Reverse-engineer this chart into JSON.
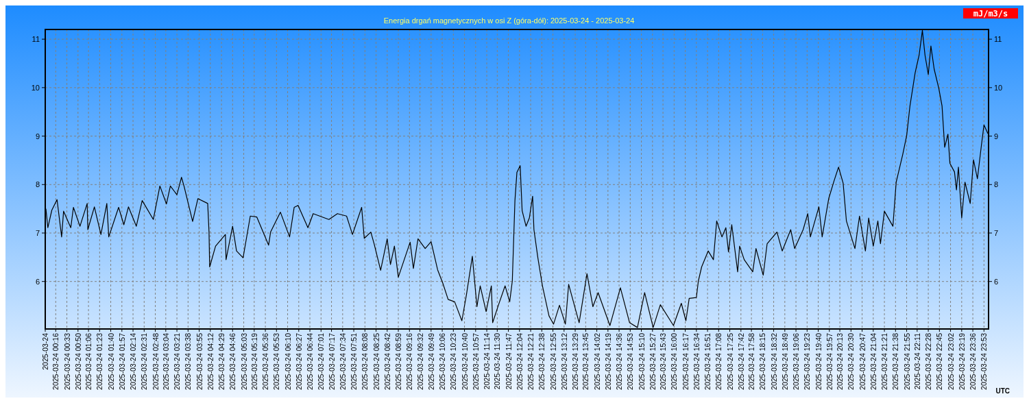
{
  "chart_data": {
    "type": "line",
    "title": "Energia drgań magnetycznych w osi Z (góra-dół): 2025-03-24 - 2025-03-24",
    "y2label": "mJ/m3/s",
    "xlabel": "UTC",
    "x": [
      "2025-03-24T00:01",
      "2025-03-24T00:04",
      "2025-03-24T00:10",
      "2025-03-24T00:18",
      "2025-03-24T00:25",
      "2025-03-24T00:28",
      "2025-03-24T00:39",
      "2025-03-24T00:43",
      "2025-03-24T00:53",
      "2025-03-24T01:04",
      "2025-03-24T01:05",
      "2025-03-24T01:15",
      "2025-03-24T01:25",
      "2025-03-24T01:34",
      "2025-03-24T01:37",
      "2025-03-24T01:52",
      "2025-03-24T02:00",
      "2025-03-24T02:07",
      "2025-03-24T02:19",
      "2025-03-24T02:28",
      "2025-03-24T02:45",
      "2025-03-24T02:55",
      "2025-03-24T03:05",
      "2025-03-24T03:11",
      "2025-03-24T03:21",
      "2025-03-24T03:28",
      "2025-03-24T03:32",
      "2025-03-24T03:45",
      "2025-03-24T03:53",
      "2025-03-24T04:08",
      "2025-03-24T04:10",
      "2025-03-24T04:11",
      "2025-03-24T04:20",
      "2025-03-24T04:35",
      "2025-03-24T04:36",
      "2025-03-24T04:46",
      "2025-03-24T04:52",
      "2025-03-24T05:02",
      "2025-03-24T05:13",
      "2025-03-24T05:23",
      "2025-03-24T05:41",
      "2025-03-24T05:44",
      "2025-03-24T05:59",
      "2025-03-24T06:13",
      "2025-03-24T06:20",
      "2025-03-24T06:26",
      "2025-03-24T06:41",
      "2025-03-24T06:49",
      "2025-03-24T07:13",
      "2025-03-24T07:26",
      "2025-03-24T07:40",
      "2025-03-24T07:49",
      "2025-03-24T08:03",
      "2025-03-24T08:07",
      "2025-03-24T08:17",
      "2025-03-24T08:22",
      "2025-03-24T08:32",
      "2025-03-24T08:42",
      "2025-03-24T08:47",
      "2025-03-24T08:53",
      "2025-03-24T08:59",
      "2025-03-24T09:17",
      "2025-03-24T09:22",
      "2025-03-24T09:29",
      "2025-03-24T09:40",
      "2025-03-24T09:49",
      "2025-03-24T09:59",
      "2025-03-24T10:07",
      "2025-03-24T10:15",
      "2025-03-24T10:25",
      "2025-03-24T10:36",
      "2025-03-24T10:43",
      "2025-03-24T10:52",
      "2025-03-24T10:59",
      "2025-03-24T11:04",
      "2025-03-24T11:13",
      "2025-03-24T11:21",
      "2025-03-24T11:23",
      "2025-03-24T11:32",
      "2025-03-24T11:42",
      "2025-03-24T11:49",
      "2025-03-24T11:53",
      "2025-03-24T11:57",
      "2025-03-24T12:00",
      "2025-03-24T12:05",
      "2025-03-24T12:08",
      "2025-03-24T12:14",
      "2025-03-24T12:19",
      "2025-03-24T12:24",
      "2025-03-24T12:26",
      "2025-03-24T12:32",
      "2025-03-24T12:39",
      "2025-03-24T12:49",
      "2025-03-24T12:56",
      "2025-03-24T13:05",
      "2025-03-24T13:14",
      "2025-03-24T13:19",
      "2025-03-24T13:35",
      "2025-03-24T13:47",
      "2025-03-24T13:56",
      "2025-03-24T14:04",
      "2025-03-24T14:22",
      "2025-03-24T14:38",
      "2025-03-24T14:52",
      "2025-03-24T15:04",
      "2025-03-24T15:15",
      "2025-03-24T15:28",
      "2025-03-24T15:39",
      "2025-03-24T15:59",
      "2025-03-24T16:11",
      "2025-03-24T16:18",
      "2025-03-24T16:23",
      "2025-03-24T16:34",
      "2025-03-24T16:37",
      "2025-03-24T16:42",
      "2025-03-24T16:52",
      "2025-03-24T17:00",
      "2025-03-24T17:05",
      "2025-03-24T17:13",
      "2025-03-24T17:19",
      "2025-03-24T17:23",
      "2025-03-24T17:28",
      "2025-03-24T17:37",
      "2025-03-24T17:40",
      "2025-03-24T17:47",
      "2025-03-24T18:00",
      "2025-03-24T18:05",
      "2025-03-24T18:16",
      "2025-03-24T18:22",
      "2025-03-24T18:37",
      "2025-03-24T18:45",
      "2025-03-24T18:58",
      "2025-03-24T19:04",
      "2025-03-24T19:17",
      "2025-03-24T19:24",
      "2025-03-24T19:28",
      "2025-03-24T19:41",
      "2025-03-24T19:46",
      "2025-03-24T19:56",
      "2025-03-24T20:04",
      "2025-03-24T20:11",
      "2025-03-24T20:18",
      "2025-03-24T20:23",
      "2025-03-24T20:36",
      "2025-03-24T20:43",
      "2025-03-24T20:52",
      "2025-03-24T20:57",
      "2025-03-24T21:04",
      "2025-03-24T21:11",
      "2025-03-24T21:15",
      "2025-03-24T21:21",
      "2025-03-24T21:34",
      "2025-03-24T21:39",
      "2025-03-24T21:49",
      "2025-03-24T21:55",
      "2025-03-24T22:00",
      "2025-03-24T22:08",
      "2025-03-24T22:14",
      "2025-03-24T22:19",
      "2025-03-24T22:23",
      "2025-03-24T22:28",
      "2025-03-24T22:32",
      "2025-03-24T22:37",
      "2025-03-24T22:44",
      "2025-03-24T22:49",
      "2025-03-24T22:53",
      "2025-03-24T22:58",
      "2025-03-24T23:01",
      "2025-03-24T23:08",
      "2025-03-24T23:11",
      "2025-03-24T23:14",
      "2025-03-24T23:19",
      "2025-03-24T23:24",
      "2025-03-24T23:32",
      "2025-03-24T23:37",
      "2025-03-24T23:43",
      "2025-03-24T23:49",
      "2025-03-24T23:53",
      "2025-03-24T23:59"
    ],
    "series": [
      {
        "color": "#000000",
        "values": [
          7.5,
          7.11,
          7.47,
          7.69,
          6.92,
          7.45,
          7.11,
          7.53,
          7.14,
          7.61,
          7.07,
          7.54,
          6.97,
          7.61,
          6.92,
          7.53,
          7.17,
          7.54,
          7.14,
          7.67,
          7.28,
          7.97,
          7.6,
          7.97,
          7.79,
          8.15,
          7.96,
          7.24,
          7.71,
          7.61,
          7.02,
          6.3,
          6.73,
          6.97,
          6.45,
          7.14,
          6.63,
          6.49,
          7.35,
          7.33,
          6.75,
          7.02,
          7.43,
          6.92,
          7.53,
          7.57,
          7.11,
          7.4,
          7.28,
          7.4,
          7.35,
          6.97,
          7.53,
          6.89,
          7.02,
          6.78,
          6.23,
          6.88,
          6.35,
          6.73,
          6.09,
          6.81,
          6.27,
          6.88,
          6.68,
          6.82,
          6.24,
          5.96,
          5.63,
          5.58,
          5.19,
          5.73,
          6.52,
          5.48,
          5.91,
          5.38,
          5.91,
          5.15,
          5.52,
          5.91,
          5.58,
          6.01,
          7.67,
          8.25,
          8.39,
          7.46,
          7.14,
          7.31,
          7.76,
          7.07,
          6.49,
          5.91,
          5.29,
          5.12,
          5.51,
          5.12,
          5.94,
          5.15,
          6.16,
          5.48,
          5.77,
          5.09,
          5.87,
          5.15,
          5.05,
          5.77,
          5.05,
          5.52,
          5.09,
          5.55,
          5.19,
          5.65,
          5.67,
          6.01,
          6.3,
          6.63,
          6.45,
          7.25,
          6.92,
          7.11,
          6.61,
          7.17,
          6.2,
          6.73,
          6.45,
          6.2,
          6.68,
          6.13,
          6.78,
          7.02,
          6.63,
          7.07,
          6.68,
          7.07,
          7.4,
          6.92,
          7.54,
          6.92,
          7.71,
          8.07,
          8.36,
          8.03,
          7.25,
          6.68,
          7.35,
          6.63,
          7.31,
          6.73,
          7.25,
          6.78,
          7.45,
          7.14,
          8.05,
          8.62,
          9.01,
          9.62,
          10.31,
          10.67,
          11.18,
          10.67,
          10.27,
          10.86,
          10.38,
          9.99,
          9.62,
          8.77,
          9.04,
          8.44,
          8.26,
          7.89,
          8.36,
          7.31,
          8.05,
          7.61,
          8.51,
          8.12,
          8.8,
          9.23,
          9.05
        ]
      }
    ],
    "xlim": [
      "2025-03-24T00:00",
      "2025-03-25T00:00"
    ],
    "xticks": [
      "2025-03-24",
      {
        "value": "2025-03-24T00:16",
        "label": "2025-03-24 00:16"
      },
      {
        "value": "2025-03-24T00:33",
        "label": "2025-03-24 00:33"
      },
      {
        "value": "2025-03-24T00:50",
        "label": "2025-03-24 00:50"
      },
      {
        "value": "2025-03-24T01:06",
        "label": "2025-03-24 01:06"
      },
      {
        "value": "2025-03-24T01:23",
        "label": "2025-03-24 01:23"
      },
      {
        "value": "2025-03-24T01:40",
        "label": "2025-03-24 01:40"
      },
      {
        "value": "2025-03-24T01:57",
        "label": "2025-03-24 01:57"
      },
      {
        "value": "2025-03-24T02:14",
        "label": "2025-03-24 02:14"
      },
      {
        "value": "2025-03-24T02:31",
        "label": "2025-03-24 02:31"
      },
      {
        "value": "2025-03-24T02:48",
        "label": "2025-03-24 02:48"
      },
      {
        "value": "2025-03-24T03:04",
        "label": "2025-03-24 03:04"
      },
      {
        "value": "2025-03-24T03:21",
        "label": "2025-03-24 03:21"
      },
      {
        "value": "2025-03-24T03:38",
        "label": "2025-03-24 03:38"
      },
      {
        "value": "2025-03-24T03:55",
        "label": "2025-03-24 03:55"
      },
      {
        "value": "2025-03-24T04:12",
        "label": "2025-03-24 04:12"
      },
      {
        "value": "2025-03-24T04:29",
        "label": "2025-03-24 04:29"
      },
      {
        "value": "2025-03-24T04:46",
        "label": "2025-03-24 04:46"
      },
      {
        "value": "2025-03-24T05:03",
        "label": "2025-03-24 05:03"
      },
      {
        "value": "2025-03-24T05:19",
        "label": "2025-03-24 05:19"
      },
      {
        "value": "2025-03-24T05:36",
        "label": "2025-03-24 05:36"
      },
      {
        "value": "2025-03-24T05:53",
        "label": "2025-03-24 05:53"
      },
      {
        "value": "2025-03-24T06:10",
        "label": "2025-03-24 06:10"
      },
      {
        "value": "2025-03-24T06:27",
        "label": "2025-03-24 06:27"
      },
      {
        "value": "2025-03-24T06:44",
        "label": "2025-03-24 06:44"
      },
      {
        "value": "2025-03-24T07:01",
        "label": "2025-03-24 07:01"
      },
      {
        "value": "2025-03-24T07:17",
        "label": "2025-03-24 07:17"
      },
      {
        "value": "2025-03-24T07:34",
        "label": "2025-03-24 07:34"
      },
      {
        "value": "2025-03-24T07:51",
        "label": "2025-03-24 07:51"
      },
      {
        "value": "2025-03-24T08:08",
        "label": "2025-03-24 08:08"
      },
      {
        "value": "2025-03-24T08:25",
        "label": "2025-03-24 08:25"
      },
      {
        "value": "2025-03-24T08:42",
        "label": "2025-03-24 08:42"
      },
      {
        "value": "2025-03-24T08:59",
        "label": "2025-03-24 08:59"
      },
      {
        "value": "2025-03-24T09:16",
        "label": "2025-03-24 09:16"
      },
      {
        "value": "2025-03-24T09:32",
        "label": "2025-03-24 09:32"
      },
      {
        "value": "2025-03-24T09:49",
        "label": "2025-03-24 09:49"
      },
      {
        "value": "2025-03-24T10:06",
        "label": "2025-03-24 10:06"
      },
      {
        "value": "2025-03-24T10:23",
        "label": "2025-03-24 10:23"
      },
      {
        "value": "2025-03-24T10:40",
        "label": "2025-03-24 10:40"
      },
      {
        "value": "2025-03-24T10:57",
        "label": "2025-03-24 10:57"
      },
      {
        "value": "2025-03-24T11:14",
        "label": "2025-03-24 11:14"
      },
      {
        "value": "2025-03-24T11:30",
        "label": "2025-03-24 11:30"
      },
      {
        "value": "2025-03-24T11:47",
        "label": "2025-03-24 11:47"
      },
      {
        "value": "2025-03-24T12:04",
        "label": "2025-03-24 12:04"
      },
      {
        "value": "2025-03-24T12:21",
        "label": "2025-03-24 12:21"
      },
      {
        "value": "2025-03-24T12:38",
        "label": "2025-03-24 12:38"
      },
      {
        "value": "2025-03-24T12:55",
        "label": "2025-03-24 12:55"
      },
      {
        "value": "2025-03-24T13:12",
        "label": "2025-03-24 13:12"
      },
      {
        "value": "2025-03-24T13:29",
        "label": "2025-03-24 13:29"
      },
      {
        "value": "2025-03-24T13:45",
        "label": "2025-03-24 13:45"
      },
      {
        "value": "2025-03-24T14:02",
        "label": "2025-03-24 14:02"
      },
      {
        "value": "2025-03-24T14:19",
        "label": "2025-03-24 14:19"
      },
      {
        "value": "2025-03-24T14:36",
        "label": "2025-03-24 14:36"
      },
      {
        "value": "2025-03-24T14:53",
        "label": "2025-03-24 14:53"
      },
      {
        "value": "2025-03-24T15:10",
        "label": "2025-03-24 15:10"
      },
      {
        "value": "2025-03-24T15:27",
        "label": "2025-03-24 15:27"
      },
      {
        "value": "2025-03-24T15:43",
        "label": "2025-03-24 15:43"
      },
      {
        "value": "2025-03-24T16:00",
        "label": "2025-03-24 16:00"
      },
      {
        "value": "2025-03-24T16:17",
        "label": "2025-03-24 16:17"
      },
      {
        "value": "2025-03-24T16:34",
        "label": "2025-03-24 16:34"
      },
      {
        "value": "2025-03-24T16:51",
        "label": "2025-03-24 16:51"
      },
      {
        "value": "2025-03-24T17:08",
        "label": "2025-03-24 17:08"
      },
      {
        "value": "2025-03-24T17:25",
        "label": "2025-03-24 17:25"
      },
      {
        "value": "2025-03-24T17:42",
        "label": "2025-03-24 17:42"
      },
      {
        "value": "2025-03-24T17:58",
        "label": "2025-03-24 17:58"
      },
      {
        "value": "2025-03-24T18:15",
        "label": "2025-03-24 18:15"
      },
      {
        "value": "2025-03-24T18:32",
        "label": "2025-03-24 18:32"
      },
      {
        "value": "2025-03-24T18:49",
        "label": "2025-03-24 18:49"
      },
      {
        "value": "2025-03-24T19:06",
        "label": "2025-03-24 19:06"
      },
      {
        "value": "2025-03-24T19:23",
        "label": "2025-03-24 19:23"
      },
      {
        "value": "2025-03-24T19:40",
        "label": "2025-03-24 19:40"
      },
      {
        "value": "2025-03-24T19:57",
        "label": "2025-03-24 19:57"
      },
      {
        "value": "2025-03-24T20:13",
        "label": "2025-03-24 20:13"
      },
      {
        "value": "2025-03-24T20:30",
        "label": "2025-03-24 20:30"
      },
      {
        "value": "2025-03-24T20:47",
        "label": "2025-03-24 20:47"
      },
      {
        "value": "2025-03-24T21:04",
        "label": "2025-03-24 21:04"
      },
      {
        "value": "2025-03-24T21:21",
        "label": "2025-03-24 21:21"
      },
      {
        "value": "2025-03-24T21:38",
        "label": "2025-03-24 21:38"
      },
      {
        "value": "2025-03-24T21:55",
        "label": "2025-03-24 21:55"
      },
      {
        "value": "2025-03-24T22:11",
        "label": "2025-03-24 22:11"
      },
      {
        "value": "2025-03-24T22:28",
        "label": "2025-03-24 22:28"
      },
      {
        "value": "2025-03-24T22:45",
        "label": "2025-03-24 22:45"
      },
      {
        "value": "2025-03-24T23:02",
        "label": "2025-03-24 23:02"
      },
      {
        "value": "2025-03-24T23:19",
        "label": "2025-03-24 23:19"
      },
      {
        "value": "2025-03-24T23:36",
        "label": "2025-03-24 23:36"
      },
      {
        "value": "2025-03-24T23:53",
        "label": "2025-03-24 23:53"
      }
    ],
    "ylim": [
      5.02,
      11.2
    ],
    "yticks": [
      6,
      7,
      8,
      9,
      10,
      11
    ],
    "y2lim": [
      5.02,
      11.2
    ],
    "y2ticks": [
      6,
      7,
      8,
      9,
      10,
      11
    ],
    "grid": true,
    "marker": "none",
    "line_style": "solid"
  }
}
